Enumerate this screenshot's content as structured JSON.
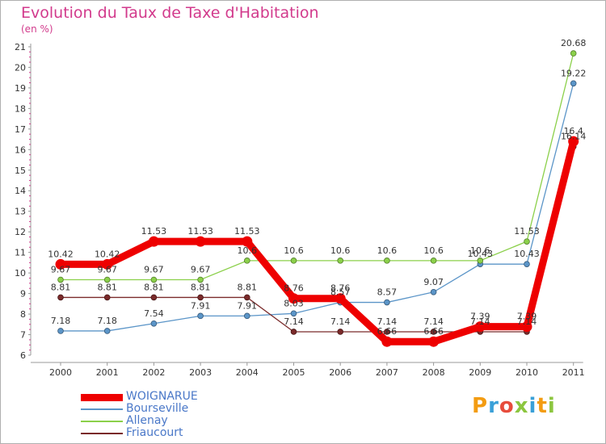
{
  "title": "Evolution du Taux de Taxe d'Habitation",
  "ylabel": "(en %)",
  "logo": {
    "text": "Proxiti",
    "colors": [
      "#f39c12",
      "#3aa0d8",
      "#e74c3c",
      "#8cc63f",
      "#3aa0d8",
      "#f39c12",
      "#8cc63f"
    ]
  },
  "chart_data": {
    "type": "line",
    "title": "Evolution du Taux de Taxe d'Habitation",
    "xlabel": "",
    "ylabel": "(en %)",
    "categories": [
      "2000",
      "2001",
      "2002",
      "2003",
      "2004",
      "2005",
      "2006",
      "2007",
      "2008",
      "2009",
      "2010",
      "2011"
    ],
    "ylim": [
      6,
      21
    ],
    "yticks": [
      6,
      7,
      8,
      9,
      10,
      11,
      12,
      13,
      14,
      15,
      16,
      17,
      18,
      19,
      20,
      21
    ],
    "grid": false,
    "legend_position": "bottom-left",
    "series": [
      {
        "name": "WOIGNARUE",
        "color": "#ee0000",
        "width": "thick",
        "values": [
          10.42,
          10.42,
          11.53,
          11.53,
          11.53,
          8.76,
          8.76,
          6.66,
          6.66,
          7.39,
          7.39,
          16.4
        ],
        "labels": [
          "10.42",
          "10.42",
          "11.53",
          "11.53",
          "11.53",
          "8.76",
          "8.76",
          "6.66",
          "6.66",
          "7.39",
          "7.39",
          "16.4"
        ]
      },
      {
        "name": "Bourseville",
        "color": "#5b95c8",
        "width": "thin",
        "values": [
          7.18,
          7.18,
          7.54,
          7.91,
          7.91,
          8.03,
          8.57,
          8.57,
          9.07,
          10.43,
          10.43,
          19.22
        ],
        "labels": [
          "7.18",
          "7.18",
          "7.54",
          "7.91",
          "7.91",
          "8.03",
          "8.57",
          "8.57",
          "9.07",
          "10.43",
          "10.43",
          "19.22"
        ]
      },
      {
        "name": "Allenay",
        "color": "#8bd04a",
        "width": "thin",
        "values": [
          9.67,
          9.67,
          9.67,
          9.67,
          10.6,
          10.6,
          10.6,
          10.6,
          10.6,
          10.6,
          11.53,
          20.68
        ],
        "labels": [
          "9.67",
          "9.67",
          "9.67",
          "9.67",
          "10.6",
          "10.6",
          "10.6",
          "10.6",
          "10.6",
          "10.6",
          "11.53",
          "20.68"
        ]
      },
      {
        "name": "Friaucourt",
        "color": "#7a2a2a",
        "width": "thin",
        "values": [
          8.81,
          8.81,
          8.81,
          8.81,
          8.81,
          7.14,
          7.14,
          7.14,
          7.14,
          7.14,
          7.14,
          16.14
        ],
        "labels": [
          "8.81",
          "8.81",
          "8.81",
          "8.81",
          "8.81",
          "7.14",
          "7.14",
          "7.14",
          "7.14",
          "7.14",
          "7.14",
          "16.14"
        ]
      }
    ]
  }
}
